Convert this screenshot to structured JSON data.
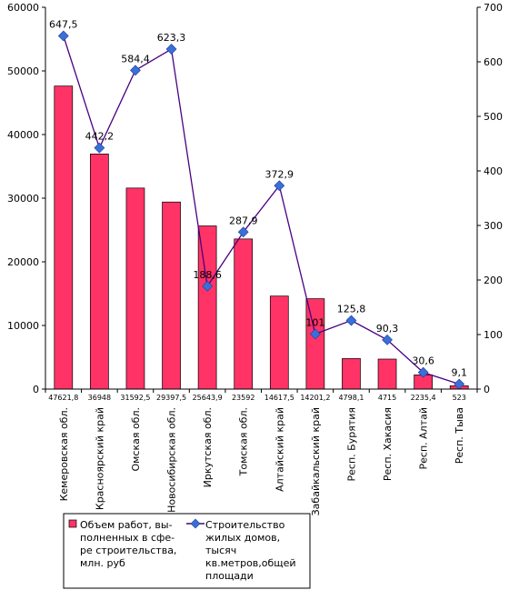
{
  "chart_data": {
    "type": "bar",
    "categories": [
      "Кемеровская обл.",
      "Красноярский край",
      "Омская обл.",
      "Новосибирская обл.",
      "Иркутская обл.",
      "Томская обл.",
      "Алтайский край",
      "Забайкальский край",
      "Респ. Бурятия",
      "Респ. Хакасия",
      "Респ. Алтай",
      "Респ. Тыва"
    ],
    "series": [
      {
        "name": "Объем работ, вы-полненных в сфе-ре строительства, млн. руб",
        "axis": "left",
        "kind": "bar",
        "color": "#ff3366",
        "values": [
          47621.8,
          36948,
          31592.5,
          29397.5,
          25643.9,
          23592,
          14617.5,
          14201.2,
          4798.1,
          4715,
          2235.4,
          523
        ],
        "labels": [
          "47621,8",
          "36948",
          "31592,5",
          "29397,5",
          "25643,9",
          "23592",
          "14617,5",
          "14201,2",
          "4798,1",
          "4715",
          "2235,4",
          "523"
        ]
      },
      {
        "name": "Строительство жилых домов, тысяч кв.метров,общей площади",
        "axis": "right",
        "kind": "line",
        "color": "#4b0082",
        "marker_color": "#3a6fd8",
        "values": [
          647.5,
          442.2,
          584.4,
          623.3,
          188.6,
          287.9,
          372.9,
          101,
          125.8,
          90.3,
          30.6,
          9.1
        ],
        "labels": [
          "647,5",
          "442,2",
          "584,4",
          "623,3",
          "188,6",
          "287,9",
          "372,9",
          "101",
          "125,8",
          "90,3",
          "30,6",
          "9,1"
        ]
      }
    ],
    "y_left": {
      "min": 0,
      "max": 60000,
      "ticks": [
        "0",
        "10000",
        "20000",
        "30000",
        "40000",
        "50000",
        "60000"
      ]
    },
    "y_right": {
      "min": 0,
      "max": 700,
      "ticks": [
        "0",
        "100",
        "200",
        "300",
        "400",
        "500",
        "600",
        "700"
      ]
    },
    "grid": false,
    "legend_position": "bottom",
    "legend": [
      "Объем работ, вы-",
      "полненных в сфе-",
      "ре строительства,",
      "млн. руб",
      "Строительство",
      "жилых домов,",
      "тысяч",
      "кв.метров,общей",
      "площади"
    ]
  }
}
